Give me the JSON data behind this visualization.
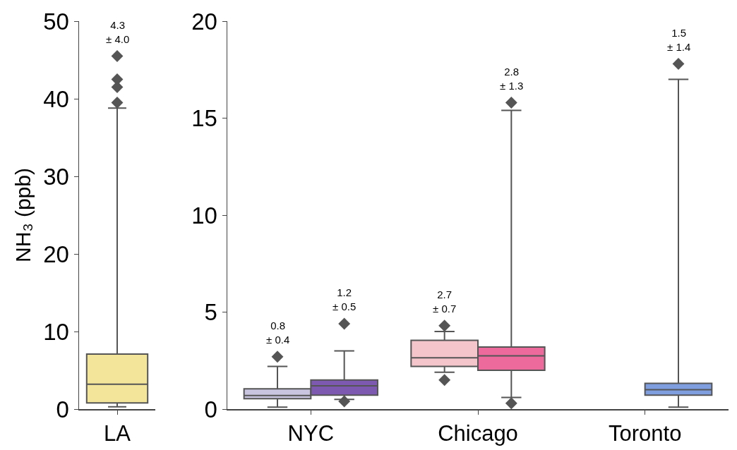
{
  "chart_data": [
    {
      "type": "box",
      "categories": [
        "LA"
      ],
      "ylabel": "NH₃ (ppb)",
      "ylim": [
        0,
        50
      ],
      "yticks": [
        0,
        10,
        20,
        30,
        40,
        50
      ],
      "marker": "diamond",
      "series": [
        {
          "colors": [
            "#f3e59a"
          ],
          "value_labels": [
            "4.3\n± 4.0"
          ],
          "boxes": [
            {
              "low": 0.3,
              "q1": 0.8,
              "median": 3.2,
              "q3": 7.1,
              "high": 38.8,
              "outliers": [
                39.5,
                41.5,
                42.5,
                45.5
              ]
            }
          ]
        }
      ]
    },
    {
      "type": "box",
      "categories": [
        "NYC",
        "Chicago",
        "Toronto"
      ],
      "ylim": [
        0,
        20
      ],
      "yticks": [
        0,
        5,
        10,
        15,
        20
      ],
      "marker": "diamond",
      "series": [
        {
          "colors": [
            "#c9c5e0",
            "#f4c6cc",
            null
          ],
          "value_labels": [
            "0.8\n± 0.4",
            "2.7\n± 0.7",
            null
          ],
          "boxes": [
            {
              "low": 0.1,
              "q1": 0.54,
              "median": 0.7,
              "q3": 1.05,
              "high": 2.2,
              "outliers": [
                2.7
              ]
            },
            {
              "low": 1.9,
              "q1": 2.2,
              "median": 2.65,
              "q3": 3.55,
              "high": 4.0,
              "outliers": [
                1.5,
                4.3
              ]
            },
            null
          ]
        },
        {
          "colors": [
            "#7d5ab0",
            "#ec6b9c",
            "#7e9ee0"
          ],
          "value_labels": [
            "1.2\n± 0.5",
            "2.8\n± 1.3",
            "1.5\n± 1.4"
          ],
          "boxes": [
            {
              "low": 0.5,
              "q1": 0.72,
              "median": 1.2,
              "q3": 1.5,
              "high": 3.0,
              "outliers": [
                0.4,
                4.4
              ]
            },
            {
              "low": 0.6,
              "q1": 2.0,
              "median": 2.75,
              "q3": 3.2,
              "high": 15.4,
              "outliers": [
                0.3,
                15.8
              ]
            },
            {
              "low": 0.1,
              "q1": 0.72,
              "median": 1.0,
              "q3": 1.33,
              "high": 17.0,
              "outliers": [
                17.8
              ]
            }
          ]
        }
      ]
    }
  ]
}
